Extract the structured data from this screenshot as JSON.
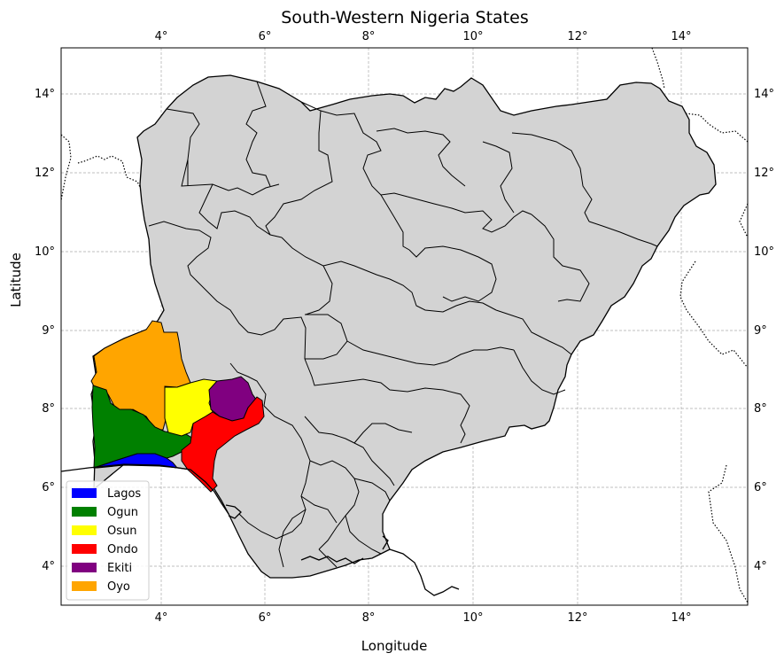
{
  "title": "South-Western Nigeria States",
  "xlabel": "Longitude",
  "ylabel": "Latitude",
  "colors": {
    "land": "#d3d3d3",
    "border": "#000000",
    "grid": "#aaaaaa"
  },
  "x_ticks": [
    "4°",
    "6°",
    "8°",
    "10°",
    "12°",
    "14°"
  ],
  "y_ticks": [
    "4°",
    "6°",
    "8°",
    "9°",
    "10°",
    "12°",
    "14°"
  ],
  "legend": [
    {
      "label": "Lagos",
      "color": "#0000ff"
    },
    {
      "label": "Ogun",
      "color": "#008000"
    },
    {
      "label": "Osun",
      "color": "#ffff00"
    },
    {
      "label": "Ondo",
      "color": "#ff0000"
    },
    {
      "label": "Ekiti",
      "color": "#800080"
    },
    {
      "label": "Oyo",
      "color": "#ffa500"
    }
  ]
}
